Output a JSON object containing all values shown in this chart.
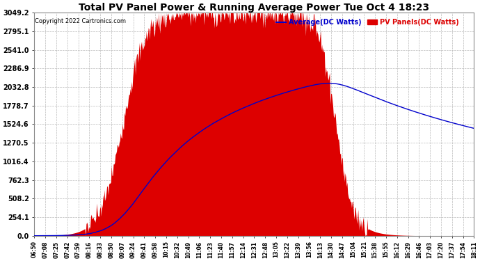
{
  "title": "Total PV Panel Power & Running Average Power Tue Oct 4 18:23",
  "copyright": "Copyright 2022 Cartronics.com",
  "legend_avg": "Average(DC Watts)",
  "legend_pv": "PV Panels(DC Watts)",
  "ymax": 3049.2,
  "yticks": [
    0.0,
    254.1,
    508.2,
    762.3,
    1016.4,
    1270.5,
    1524.6,
    1778.7,
    2032.8,
    2286.9,
    2541.0,
    2795.1,
    3049.2
  ],
  "bg_color": "#ffffff",
  "grid_color": "#cccccc",
  "pv_color": "#dd0000",
  "avg_color": "#0000cc",
  "title_color": "#000000",
  "copyright_color": "#000000",
  "xtick_labels": [
    "06:50",
    "07:08",
    "07:25",
    "07:42",
    "07:59",
    "08:16",
    "08:33",
    "08:50",
    "09:07",
    "09:24",
    "09:41",
    "09:58",
    "10:15",
    "10:32",
    "10:49",
    "11:06",
    "11:23",
    "11:40",
    "11:57",
    "12:14",
    "12:31",
    "12:48",
    "13:05",
    "13:22",
    "13:39",
    "13:56",
    "14:13",
    "14:30",
    "14:47",
    "15:04",
    "15:21",
    "15:38",
    "15:55",
    "16:12",
    "16:29",
    "16:46",
    "17:03",
    "17:20",
    "17:37",
    "17:54",
    "18:11"
  ],
  "n_points": 680
}
